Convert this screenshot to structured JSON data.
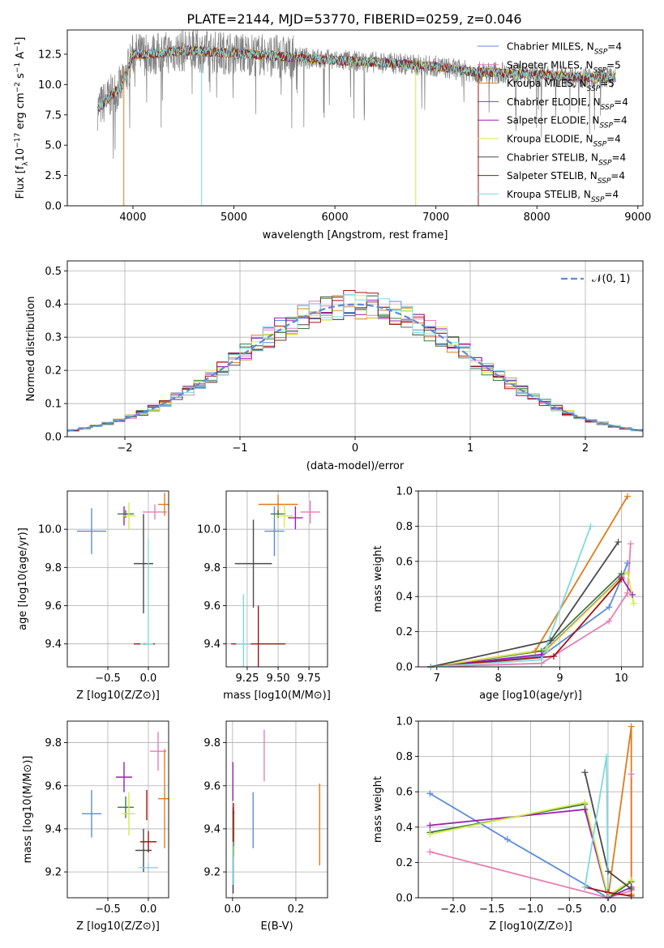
{
  "figure_title": "PLATE=2144, MJD=53770, FIBERID=0259, z=0.046",
  "colors": {
    "Chabrier MILES": "#5b8bdc",
    "Salpeter MILES": "#e57fb4",
    "Kroupa MILES": "#e07b1c",
    "Chabrier ELODIE": "#3f7a3f",
    "Salpeter ELODIE": "#9b1fb3",
    "Kroupa ELODIE": "#d4ea4a",
    "Chabrier STELIB": "#4a4a4a",
    "Salpeter STELIB": "#a11414",
    "Kroupa STELIB": "#7fd9dd",
    "gray_spectrum": "#808080",
    "grid": "#b0b0b0",
    "normal_curve": "#5b8bdc"
  },
  "chart_data": [
    {
      "id": "spectrum",
      "type": "line",
      "title": "PLATE=2144, MJD=53770, FIBERID=0259, z=0.046",
      "xlabel": "wavelength [Angstrom, rest frame]",
      "ylabel": "Flux [f_λ 10^-17 erg cm^-2 s^-1 A^-1]",
      "xlim": [
        3350,
        9050
      ],
      "ylim": [
        0,
        14.5
      ],
      "xticks": [
        4000,
        5000,
        6000,
        7000,
        8000,
        9000
      ],
      "yticks": [
        0.0,
        2.5,
        5.0,
        7.5,
        10.0,
        12.5
      ],
      "grid": false,
      "legend_position": "right",
      "data_range": [
        3650,
        8780
      ],
      "continuum": {
        "x": [
          3650,
          3900,
          4000,
          4200,
          4500,
          5000,
          5500,
          6000,
          6500,
          7000,
          7400,
          7600,
          8000,
          8400,
          8780
        ],
        "y": [
          8.0,
          10.0,
          12.5,
          12.5,
          12.8,
          12.6,
          12.3,
          12.0,
          11.8,
          11.5,
          11.0,
          11.0,
          10.8,
          10.6,
          10.6
        ]
      },
      "series": [
        {
          "name": "Chabrier MILES, N_SSP=4",
          "key": "Chabrier MILES"
        },
        {
          "name": "Salpeter MILES, N_SSP=5",
          "key": "Salpeter MILES"
        },
        {
          "name": "Kroupa MILES, N_SSP=5",
          "key": "Kroupa MILES"
        },
        {
          "name": "Chabrier ELODIE, N_SSP=4",
          "key": "Chabrier ELODIE"
        },
        {
          "name": "Salpeter ELODIE, N_SSP=4",
          "key": "Salpeter ELODIE"
        },
        {
          "name": "Kroupa ELODIE, N_SSP=4",
          "key": "Kroupa ELODIE"
        },
        {
          "name": "Chabrier STELIB, N_SSP=4",
          "key": "Chabrier STELIB"
        },
        {
          "name": "Salpeter STELIB, N_SSP=4",
          "key": "Salpeter STELIB"
        },
        {
          "name": "Kroupa STELIB, N_SSP=4",
          "key": "Kroupa STELIB"
        }
      ]
    },
    {
      "id": "residuals",
      "type": "histogram",
      "xlabel": "(data-model)/error",
      "ylabel": "Normed distribution",
      "xlim": [
        -2.5,
        2.5
      ],
      "ylim": [
        0,
        0.53
      ],
      "xticks": [
        -2,
        -1,
        0,
        1,
        2
      ],
      "yticks": [
        0.0,
        0.1,
        0.2,
        0.3,
        0.4,
        0.5
      ],
      "grid": true,
      "legend": "𝒩(0, 1)",
      "legend_position": "top-right",
      "bin_edges": [
        -2.5,
        2.5
      ],
      "bin_width": 0.1
    },
    {
      "id": "age_vs_Z",
      "type": "errorbar",
      "xlabel": "Z [log10(Z/Z⊙)]",
      "ylabel": "age [log10(age/yr)]",
      "xlim": [
        -1.0,
        0.25
      ],
      "ylim": [
        9.28,
        10.2
      ],
      "xticks": [
        -0.5,
        0.0
      ],
      "yticks": [
        9.4,
        9.6,
        9.8,
        10.0
      ],
      "grid": true,
      "points": [
        {
          "key": "Chabrier MILES",
          "x": -0.7,
          "xerr": 0.18,
          "y": 9.99,
          "yerr": 0.12
        },
        {
          "key": "Salpeter MILES",
          "x": 0.08,
          "xerr": 0.15,
          "y": 10.09,
          "yerr": 0.04
        },
        {
          "key": "Kroupa MILES",
          "x": 0.2,
          "xerr": 0.08,
          "y": 10.13,
          "yerr": 0.06
        },
        {
          "key": "Chabrier ELODIE",
          "x": -0.28,
          "xerr": 0.1,
          "y": 10.08,
          "yerr": 0.02
        },
        {
          "key": "Salpeter ELODIE",
          "x": -0.3,
          "xerr": 0.02,
          "y": 10.07,
          "yerr": 0.05
        },
        {
          "key": "Kroupa ELODIE",
          "x": -0.24,
          "xerr": 0.08,
          "y": 10.07,
          "yerr": 0.07
        },
        {
          "key": "Chabrier STELIB",
          "x": -0.06,
          "xerr": 0.12,
          "y": 9.82,
          "yerr": 0.26
        },
        {
          "key": "Salpeter STELIB",
          "x": -0.05,
          "xerr": 0.13,
          "y": 9.4,
          "yerr": 0.005
        },
        {
          "key": "Kroupa STELIB",
          "x": -0.02,
          "xerr": 0.08,
          "y": 9.4,
          "yerr": 0.005
        },
        {
          "key": "Kroupa STELIB",
          "x": 0.0,
          "xerr": 0.005,
          "y": 9.67,
          "yerr": 0.28
        }
      ]
    },
    {
      "id": "age_vs_mass",
      "type": "errorbar",
      "xlabel": "mass [log10(M/M⊙)]",
      "ylabel": "",
      "xlim": [
        9.08,
        9.9
      ],
      "ylim": [
        9.28,
        10.2
      ],
      "xticks": [
        9.25,
        9.5,
        9.75
      ],
      "yticks": [
        9.4,
        9.6,
        9.8,
        10.0
      ],
      "grid": true,
      "points": [
        {
          "key": "Chabrier MILES",
          "x": 9.47,
          "xerr": 0.08,
          "y": 9.99,
          "yerr": 0.13
        },
        {
          "key": "Salpeter MILES",
          "x": 9.76,
          "xerr": 0.08,
          "y": 10.09,
          "yerr": 0.06
        },
        {
          "key": "Kroupa MILES",
          "x": 9.5,
          "xerr": 0.16,
          "y": 10.13,
          "yerr": 0.05
        },
        {
          "key": "Chabrier ELODIE",
          "x": 9.5,
          "xerr": 0.06,
          "y": 10.08,
          "yerr": 0.02
        },
        {
          "key": "Salpeter ELODIE",
          "x": 9.64,
          "xerr": 0.06,
          "y": 10.06,
          "yerr": 0.06
        },
        {
          "key": "Kroupa ELODIE",
          "x": 9.55,
          "xerr": 0.07,
          "y": 10.07,
          "yerr": 0.06
        },
        {
          "key": "Chabrier STELIB",
          "x": 9.3,
          "xerr": 0.15,
          "y": 9.82,
          "yerr": 0.23
        },
        {
          "key": "Salpeter STELIB",
          "x": 9.34,
          "xerr": 0.22,
          "y": 9.4,
          "yerr": 0.2
        },
        {
          "key": "Kroupa STELIB",
          "x": 9.22,
          "xerr": 0.06,
          "y": 9.4,
          "yerr": 0.26
        }
      ]
    },
    {
      "id": "weight_vs_age",
      "type": "line",
      "xlabel": "age [log10(age/yr)]",
      "ylabel": "mass weight",
      "xlim": [
        6.7,
        10.35
      ],
      "ylim": [
        0.0,
        1.0
      ],
      "xticks": [
        7,
        8,
        9,
        10
      ],
      "yticks": [
        0.0,
        0.2,
        0.4,
        0.6,
        0.8,
        1.0
      ],
      "grid": true,
      "series": [
        {
          "key": "Chabrier MILES",
          "x": [
            6.9,
            8.7,
            9.8,
            10.0,
            10.1
          ],
          "y": [
            0.0,
            0.06,
            0.34,
            0.5,
            0.59
          ]
        },
        {
          "key": "Salpeter MILES",
          "x": [
            6.9,
            8.7,
            9.8,
            10.1,
            10.15
          ],
          "y": [
            0.0,
            0.02,
            0.26,
            0.42,
            0.7
          ]
        },
        {
          "key": "Kroupa MILES",
          "x": [
            6.9,
            8.6,
            10.1
          ],
          "y": [
            0.0,
            0.09,
            0.97
          ]
        },
        {
          "key": "Chabrier ELODIE",
          "x": [
            6.9,
            8.7,
            10.0
          ],
          "y": [
            0.0,
            0.09,
            0.53
          ]
        },
        {
          "key": "Salpeter ELODIE",
          "x": [
            6.9,
            8.7,
            10.0,
            10.18
          ],
          "y": [
            0.0,
            0.07,
            0.51,
            0.41
          ]
        },
        {
          "key": "Kroupa ELODIE",
          "x": [
            6.9,
            8.8,
            10.1,
            10.2
          ],
          "y": [
            0.0,
            0.1,
            0.54,
            0.36
          ]
        },
        {
          "key": "Chabrier STELIB",
          "x": [
            6.9,
            8.85,
            9.95
          ],
          "y": [
            0.0,
            0.15,
            0.71
          ]
        },
        {
          "key": "Salpeter STELIB",
          "x": [
            6.9,
            8.9,
            10.0
          ],
          "y": [
            0.0,
            0.06,
            0.5
          ]
        },
        {
          "key": "Kroupa STELIB",
          "x": [
            6.9,
            8.7,
            9.5
          ],
          "y": [
            0.0,
            0.04,
            0.8
          ]
        }
      ]
    },
    {
      "id": "mass_vs_Z",
      "type": "errorbar",
      "xlabel": "Z [log10(Z/Z⊙)]",
      "ylabel": "mass [log10(M/M⊙)]",
      "xlim": [
        -1.0,
        0.25
      ],
      "ylim": [
        9.08,
        9.9
      ],
      "xticks": [
        -0.5,
        0.0
      ],
      "yticks": [
        9.2,
        9.4,
        9.6,
        9.8
      ],
      "grid": true,
      "points": [
        {
          "key": "Chabrier MILES",
          "x": -0.7,
          "xerr": 0.12,
          "y": 9.47,
          "yerr": 0.11
        },
        {
          "key": "Salpeter MILES",
          "x": 0.12,
          "xerr": 0.1,
          "y": 9.76,
          "yerr": 0.09
        },
        {
          "key": "Kroupa MILES",
          "x": 0.2,
          "xerr": 0.08,
          "y": 9.54,
          "yerr": 0.23
        },
        {
          "key": "Chabrier ELODIE",
          "x": -0.28,
          "xerr": 0.1,
          "y": 9.5,
          "yerr": 0.05
        },
        {
          "key": "Salpeter ELODIE",
          "x": -0.3,
          "xerr": 0.1,
          "y": 9.64,
          "yerr": 0.07
        },
        {
          "key": "Kroupa ELODIE",
          "x": -0.24,
          "xerr": 0.08,
          "y": 9.47,
          "yerr": 0.1
        },
        {
          "key": "Chabrier STELIB",
          "x": -0.06,
          "xerr": 0.1,
          "y": 9.3,
          "yerr": 0.1
        },
        {
          "key": "Salpeter STELIB",
          "x": 0.0,
          "xerr": 0.1,
          "y": 9.34,
          "yerr": 0.05
        },
        {
          "key": "Salpeter STELIB",
          "x": -0.02,
          "xerr": 0.005,
          "y": 9.51,
          "yerr": 0.07
        },
        {
          "key": "Kroupa STELIB",
          "x": 0.0,
          "xerr": 0.12,
          "y": 9.22,
          "yerr": 0.02
        }
      ]
    },
    {
      "id": "mass_vs_ebv",
      "type": "errorbar",
      "xlabel": "E(B-V)",
      "ylabel": "",
      "xlim": [
        -0.02,
        0.3
      ],
      "ylim": [
        9.08,
        9.9
      ],
      "xticks": [
        0.0,
        0.2
      ],
      "yticks": [
        9.2,
        9.4,
        9.6,
        9.8
      ],
      "grid": true,
      "points": [
        {
          "key": "Chabrier MILES",
          "x": 0.065,
          "xerr": 0.0,
          "y": 9.44,
          "yerr": 0.13
        },
        {
          "key": "Salpeter MILES",
          "x": 0.1,
          "xerr": 0.0,
          "y": 9.74,
          "yerr": 0.12
        },
        {
          "key": "Kroupa MILES",
          "x": 0.275,
          "xerr": 0.0,
          "y": 9.42,
          "yerr": 0.19
        },
        {
          "key": "Chabrier ELODIE",
          "x": 0.004,
          "xerr": 0.0,
          "y": 9.42,
          "yerr": 0.06
        },
        {
          "key": "Salpeter ELODIE",
          "x": 0.001,
          "xerr": 0.0,
          "y": 9.62,
          "yerr": 0.09
        },
        {
          "key": "Kroupa ELODIE",
          "x": 0.004,
          "xerr": 0.0,
          "y": 9.37,
          "yerr": 0.1
        },
        {
          "key": "Chabrier STELIB",
          "x": 0.002,
          "xerr": 0.0,
          "y": 9.3,
          "yerr": 0.2
        },
        {
          "key": "Salpeter STELIB",
          "x": 0.003,
          "xerr": 0.0,
          "y": 9.42,
          "yerr": 0.1
        },
        {
          "key": "Kroupa STELIB",
          "x": 0.001,
          "xerr": 0.0,
          "y": 9.24,
          "yerr": 0.1
        }
      ]
    },
    {
      "id": "weight_vs_Z",
      "type": "line",
      "xlabel": "Z [log10(Z/Z⊙)]",
      "ylabel": "mass weight",
      "xlim": [
        -2.45,
        0.45
      ],
      "ylim": [
        0.0,
        1.0
      ],
      "xticks": [
        -2.0,
        -1.5,
        -1.0,
        -0.5,
        0.0
      ],
      "yticks": [
        0.0,
        0.2,
        0.4,
        0.6,
        0.8,
        1.0
      ],
      "grid": true,
      "series": [
        {
          "key": "Chabrier MILES",
          "x": [
            -2.3,
            -1.3,
            0.0
          ],
          "y": [
            0.59,
            0.33,
            0.0
          ]
        },
        {
          "key": "Salpeter MILES",
          "x": [
            -2.3,
            0.0,
            0.3,
            0.3
          ],
          "y": [
            0.26,
            0.0,
            0.04,
            0.7
          ]
        },
        {
          "key": "Kroupa MILES",
          "x": [
            0.0,
            0.3,
            0.3
          ],
          "y": [
            0.0,
            0.97,
            0.02
          ]
        },
        {
          "key": "Chabrier ELODIE",
          "x": [
            -2.3,
            -0.3,
            0.0,
            0.3
          ],
          "y": [
            0.37,
            0.53,
            0.0,
            0.09
          ]
        },
        {
          "key": "Salpeter ELODIE",
          "x": [
            -2.3,
            -0.3,
            0.0,
            0.3
          ],
          "y": [
            0.41,
            0.5,
            0.0,
            0.06
          ]
        },
        {
          "key": "Kroupa ELODIE",
          "x": [
            -2.3,
            -0.3,
            0.0,
            0.3
          ],
          "y": [
            0.36,
            0.54,
            0.01,
            0.1
          ]
        },
        {
          "key": "Chabrier STELIB",
          "x": [
            -0.3,
            0.0,
            0.3
          ],
          "y": [
            0.71,
            0.15,
            0.05
          ]
        },
        {
          "key": "Salpeter STELIB",
          "x": [
            -0.3,
            0.0,
            0.3
          ],
          "y": [
            0.06,
            0.03,
            0.01
          ]
        },
        {
          "key": "Kroupa STELIB",
          "x": [
            -0.3,
            -0.02,
            0.0
          ],
          "y": [
            0.06,
            0.8,
            0.01
          ]
        }
      ]
    }
  ]
}
